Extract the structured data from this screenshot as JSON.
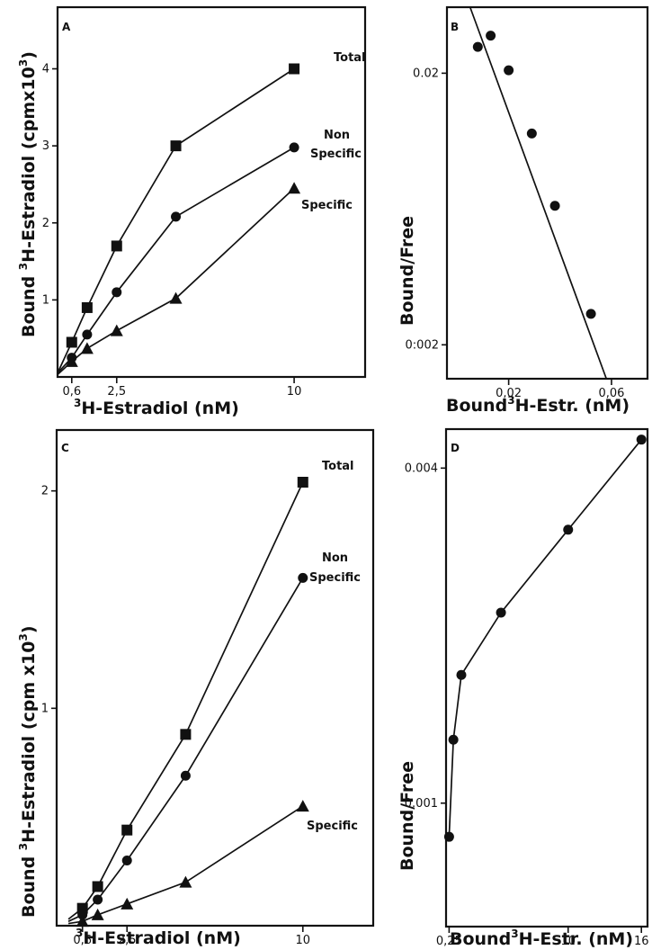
{
  "chart_data": [
    {
      "panel": "A",
      "type": "line",
      "xlabel": "3H-Estradiol (nM)",
      "ylabel": "Bound 3H-Estradiol (cpmx10 3)",
      "xlim": [
        0,
        13
      ],
      "ylim": [
        0,
        4.8
      ],
      "xticks": [
        0.6,
        2.5,
        10
      ],
      "yticks": [
        1,
        2,
        3,
        4
      ],
      "series": [
        {
          "name": "Total",
          "marker": "square",
          "x": [
            0,
            0.6,
            1.25,
            2.5,
            5,
            10
          ],
          "y": [
            0.05,
            0.45,
            0.9,
            1.7,
            3.0,
            4.0
          ]
        },
        {
          "name": "Non Specific",
          "marker": "circle",
          "x": [
            0,
            0.6,
            1.25,
            2.5,
            5,
            10
          ],
          "y": [
            0.05,
            0.25,
            0.55,
            1.1,
            2.08,
            2.98
          ]
        },
        {
          "name": "Specific",
          "marker": "triangle",
          "x": [
            0,
            0.6,
            1.25,
            2.5,
            5,
            10
          ],
          "y": [
            0.03,
            0.2,
            0.37,
            0.6,
            1.02,
            2.45
          ]
        }
      ]
    },
    {
      "panel": "B",
      "type": "scatter",
      "xlabel": "Bound 3H-Estr. (nM)",
      "ylabel": "Bound/Free",
      "xlim": [
        -0.004,
        0.074
      ],
      "ylim": [
        0.0015,
        0.035
      ],
      "yscale": "log",
      "xticks": [
        0.02,
        0.06
      ],
      "yticks": [
        0.02,
        0.002
      ],
      "ytick_labels": [
        "0.02",
        "0:002"
      ],
      "points": {
        "x": [
          0.008,
          0.013,
          0.02,
          0.029,
          0.038,
          0.052
        ],
        "y": [
          0.025,
          0.0275,
          0.0205,
          0.012,
          0.0065,
          0.0026
        ]
      },
      "fit_line": {
        "x": [
          0.005,
          0.058
        ],
        "y": [
          0.035,
          0.0015
        ]
      }
    },
    {
      "panel": "C",
      "type": "line",
      "xlabel": "3H-Estradiol (nM)",
      "ylabel": "Bound 3H-Estradiol (cpm x10 3)",
      "xlim": [
        -0.5,
        13
      ],
      "ylim": [
        0,
        2.28
      ],
      "xticks": [
        0.6,
        2.5,
        10
      ],
      "yticks": [
        1,
        2
      ],
      "series": [
        {
          "name": "Total",
          "marker": "square",
          "x": [
            0,
            0.6,
            1.25,
            2.5,
            5,
            10
          ],
          "y": [
            0.03,
            0.08,
            0.18,
            0.44,
            0.88,
            2.04
          ]
        },
        {
          "name": "Non Specific",
          "marker": "circle",
          "x": [
            0,
            0.6,
            1.25,
            2.5,
            5,
            10
          ],
          "y": [
            0.02,
            0.05,
            0.12,
            0.3,
            0.69,
            1.6
          ]
        },
        {
          "name": "Specific",
          "marker": "triangle",
          "x": [
            0,
            0.6,
            1.25,
            2.5,
            5,
            10
          ],
          "y": [
            0.01,
            0.02,
            0.05,
            0.1,
            0.2,
            0.55
          ]
        }
      ]
    },
    {
      "panel": "D",
      "type": "line",
      "xlabel": "Bound 3H-Estr. (nM)",
      "ylabel": "Bound/Free",
      "xlim": [
        0,
        16.5
      ],
      "ylim": [
        0.0006,
        0.0047
      ],
      "yscale": "log",
      "xticks": [
        0.25,
        10,
        16
      ],
      "xtick_labels": [
        "0,25",
        "10",
        "16"
      ],
      "yticks": [
        0.004,
        0.001
      ],
      "points": {
        "x": [
          0.25,
          0.6,
          1.25,
          4.5,
          10,
          16
        ],
        "y": [
          0.00087,
          0.0013,
          0.0017,
          0.0022,
          0.0031,
          0.0045
        ]
      }
    }
  ],
  "labels": {
    "A": {
      "panel_letter": "A",
      "y_title_pre": "Bound ",
      "y_title_sup": "3",
      "y_title_mid": "H-Estradiol (cpmx10",
      "y_title_sup2": "3",
      "y_title_end": ")",
      "x_title_sup": "3",
      "x_title": "H-Estradiol (nM)",
      "series_labels": {
        "total": "Total",
        "nonspecific_1": "Non",
        "nonspecific_2": "Specific",
        "specific": "Specific"
      }
    },
    "B": {
      "panel_letter": "B",
      "y_title": "Bound/Free",
      "x_title_pre": "Bound",
      "x_title_sup": "3",
      "x_title": "H-Estr. (nM)"
    },
    "C": {
      "panel_letter": "C",
      "y_title_pre": "Bound ",
      "y_title_sup": "3",
      "y_title_mid": "H-Estradiol (cpm x10",
      "y_title_sup2": "3",
      "y_title_end": ")",
      "x_title_sup": "3",
      "x_title": "H-Estradiol (nM)",
      "series_labels": {
        "total": "Total",
        "nonspecific_1": "Non",
        "nonspecific_2": "Specific",
        "specific": "Specific"
      }
    },
    "D": {
      "panel_letter": "D",
      "y_title": "Bound/Free",
      "x_title_pre": "Bound",
      "x_title_sup": "3",
      "x_title": "H-Estr. (nM)"
    }
  }
}
